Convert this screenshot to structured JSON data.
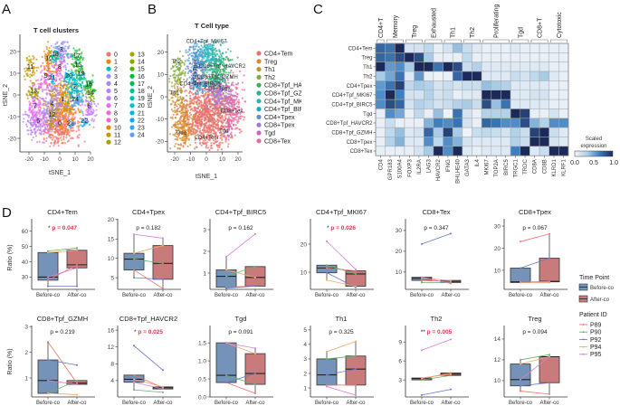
{
  "panel_labels": {
    "a": "A",
    "b": "B",
    "c": "C",
    "d": "D"
  },
  "chart_data": [
    {
      "id": "A",
      "type": "scatter",
      "title": "T cell clusters",
      "xlabel": "tSNE_1",
      "ylabel": "tSNE_2",
      "xticks": [
        -20,
        -10,
        0,
        10,
        20
      ],
      "yticks": [
        -20,
        -10,
        0,
        10,
        20
      ],
      "legend_placement": "right",
      "clusters": [
        {
          "name": "0",
          "color": "#F8766D",
          "label_at": [
            0,
            -14
          ]
        },
        {
          "name": "1",
          "color": "#E58700",
          "label_at": [
            2,
            -3
          ]
        },
        {
          "name": "2",
          "color": "#00BFC4",
          "label_at": [
            10,
            3
          ]
        },
        {
          "name": "3",
          "color": "#9590FF",
          "label_at": [
            1,
            20
          ]
        },
        {
          "name": "4",
          "color": "#A58AFF",
          "label_at": [
            -5,
            -5
          ]
        },
        {
          "name": "5",
          "color": "#B983FF",
          "label_at": [
            -14,
            -13
          ]
        },
        {
          "name": "6",
          "color": "#C77CFF",
          "label_at": [
            19,
            -6
          ]
        },
        {
          "name": "7",
          "color": "#E76BF3",
          "label_at": [
            -16,
            -6
          ]
        },
        {
          "name": "8",
          "color": "#F067D5",
          "label_at": [
            0,
            12
          ]
        },
        {
          "name": "9",
          "color": "#FA62DB",
          "label_at": [
            -9,
            8
          ]
        },
        {
          "name": "10",
          "color": "#E18A00",
          "label_at": [
            -7,
            16
          ]
        },
        {
          "name": "11",
          "color": "#C49A00",
          "label_at": [
            -19,
            12
          ]
        },
        {
          "name": "12",
          "color": "#AA9F00",
          "label_at": [
            -5,
            -10
          ]
        },
        {
          "name": "13",
          "color": "#A3A500",
          "label_at": [
            -17,
            1
          ]
        },
        {
          "name": "14",
          "color": "#86AC00",
          "label_at": [
            20,
            0
          ]
        },
        {
          "name": "15",
          "color": "#53B400",
          "label_at": [
            12,
            13
          ]
        },
        {
          "name": "16",
          "color": "#00BA38",
          "label_at": [
            19,
            4
          ]
        },
        {
          "name": "17",
          "color": "#00BC56",
          "label_at": [
            11,
            17
          ]
        },
        {
          "name": "18",
          "color": "#00C08B",
          "label_at": [
            -3,
            18
          ]
        },
        {
          "name": "19",
          "color": "#00BFAE",
          "label_at": [
            14,
            9
          ]
        },
        {
          "name": "20",
          "color": "#00BBDA",
          "label_at": [
            6,
            8
          ]
        },
        {
          "name": "21",
          "color": "#00B4F0",
          "label_at": [
            -5,
            7
          ]
        },
        {
          "name": "22",
          "color": "#00A9FF",
          "label_at": [
            16,
            -13
          ]
        },
        {
          "name": "23",
          "color": "#35A2FF",
          "label_at": [
            7,
            -14
          ]
        },
        {
          "name": "24",
          "color": "#619CFF",
          "label_at": [
            10,
            -3
          ]
        }
      ]
    },
    {
      "id": "B",
      "type": "scatter",
      "title": "T Cell type",
      "xlabel": "tSNE_1",
      "ylabel": "tSNE_2",
      "xticks": [
        -20,
        -10,
        0,
        10,
        20
      ],
      "yticks": [
        -20,
        -10,
        0,
        10,
        20
      ],
      "legend_placement": "right",
      "clusters": [
        {
          "name": "CD4+Tem",
          "color": "#E8736C",
          "label_at": [
            0,
            -19
          ]
        },
        {
          "name": "Treg",
          "color": "#D9892E",
          "label_at": [
            -16,
            -17
          ]
        },
        {
          "name": "Th1",
          "color": "#B59B2A",
          "label_at": [
            -20,
            1
          ]
        },
        {
          "name": "Th2",
          "color": "#7EAB3A",
          "label_at": [
            -19,
            15
          ]
        },
        {
          "name": "CD8+Tpf_HAVCR2",
          "color": "#3DAE5C",
          "label_at": [
            10,
            13
          ]
        },
        {
          "name": "CD8+Tpf_GZMH",
          "color": "#2DB08F",
          "label_at": [
            7,
            8
          ]
        },
        {
          "name": "CD4+Tpf_MKI67",
          "color": "#25B5BE",
          "label_at": [
            0,
            24
          ]
        },
        {
          "name": "CD4+Tpf_BIRC5",
          "color": "#1FA6D9",
          "label_at": [
            -4,
            5
          ]
        },
        {
          "name": "CD4+Tpex",
          "color": "#5E8ED6",
          "label_at": [
            -6,
            11
          ]
        },
        {
          "name": "CD8+Tpex",
          "color": "#9B79D6",
          "label_at": [
            7,
            3
          ]
        },
        {
          "name": "Tgd",
          "color": "#C667C9",
          "label_at": [
            11,
            -16
          ]
        },
        {
          "name": "CD8+Tex",
          "color": "#E56AA6",
          "label_at": [
            16,
            -7
          ]
        }
      ]
    },
    {
      "id": "C",
      "type": "heatmap",
      "colorbar_title": [
        "Scaled",
        "expression"
      ],
      "colorbar_ticks": [
        "0.0",
        "0.5",
        "1.0"
      ],
      "groups": [
        {
          "label": "CD4+T",
          "from": 0,
          "to": 0
        },
        {
          "label": "Memory",
          "from": 1,
          "to": 2
        },
        {
          "label": "Treg",
          "from": 3,
          "to": 4
        },
        {
          "label": "Exhausted",
          "from": 5,
          "to": 6
        },
        {
          "label": "Th1",
          "from": 7,
          "to": 8
        },
        {
          "label": "Th2",
          "from": 9,
          "to": 10
        },
        {
          "label": "Proliferating",
          "from": 11,
          "to": 13
        },
        {
          "label": "Tgd",
          "from": 14,
          "to": 15
        },
        {
          "label": "CD8+T",
          "from": 16,
          "to": 17
        },
        {
          "label": "Cytotoxic",
          "from": 18,
          "to": 19
        }
      ],
      "columns": [
        "CD4",
        "GPR183",
        "S100A4",
        "FOXP3",
        "IL2RA",
        "LAG3",
        "HAVCR2",
        "IFNG",
        "BHLHE40",
        "GATA3",
        "IL4",
        "MKI67",
        "TOP2A",
        "BIRC5",
        "TRGC1",
        "TRDC",
        "CD8A",
        "CD8B",
        "KLRD1",
        "KLRF1"
      ],
      "rows": [
        "CD4+Tem",
        "Treg",
        "Th1",
        "Th2",
        "CD4+Tpex",
        "CD4+Tpf_MKI67",
        "CD4+Tpf_BIRC5",
        "Tgd",
        "CD8+Tpf_HAVCR2",
        "CD8+Tpf_GZMH",
        "CD8+Tpex",
        "CD8+Tex"
      ],
      "values": [
        [
          0.75,
          0.7,
          1,
          0.15,
          0.15,
          0.25,
          0.05,
          0.15,
          0.4,
          0.2,
          0.1,
          0.05,
          0.05,
          0.05,
          0.1,
          0.05,
          0.05,
          0.05,
          0.05,
          0.05
        ],
        [
          0.75,
          0.7,
          0.85,
          1,
          0.85,
          0.35,
          0.05,
          0.05,
          0.05,
          0.25,
          0.05,
          0.05,
          0.05,
          0.05,
          0.05,
          0.05,
          0.05,
          0.05,
          0.05,
          0.05
        ],
        [
          1,
          0.55,
          0.6,
          0.35,
          1,
          1,
          0.7,
          1,
          0.85,
          0.2,
          0.3,
          0.1,
          0.1,
          0.1,
          0.1,
          0.1,
          0.1,
          0.1,
          0.05,
          0.05
        ],
        [
          0.35,
          0.5,
          0.7,
          0.1,
          0.55,
          0.05,
          0.02,
          0.05,
          0.75,
          1,
          1,
          0.1,
          0.1,
          0.1,
          0.2,
          0.15,
          0.25,
          0.35,
          0.1,
          0.05
        ],
        [
          0.55,
          0.7,
          0.9,
          0.25,
          0.35,
          0.3,
          0.15,
          0.2,
          0.15,
          0.2,
          0.2,
          0.4,
          0.35,
          0.3,
          0.1,
          0.1,
          0.1,
          0.1,
          0.05,
          0.05
        ],
        [
          0.6,
          1,
          0.65,
          0.15,
          0.15,
          0.3,
          0.15,
          0.2,
          0.05,
          0.1,
          0.1,
          1,
          1,
          1,
          0.1,
          0.1,
          0.15,
          0.15,
          0.05,
          0.05
        ],
        [
          0.6,
          0.85,
          0.75,
          0.15,
          0.3,
          0.25,
          0.15,
          0.2,
          0.3,
          0.35,
          0.2,
          0.85,
          0.4,
          0.7,
          0.1,
          0.1,
          0.1,
          0.1,
          0.05,
          0.05
        ],
        [
          0.05,
          0.6,
          0.5,
          0.05,
          0.25,
          0.05,
          0.4,
          0.02,
          0.7,
          0.15,
          0.05,
          0.3,
          0.3,
          0.3,
          1,
          0.9,
          0.05,
          0.05,
          0.15,
          0.05
        ],
        [
          0.05,
          0.2,
          0.05,
          0.05,
          0.05,
          0.45,
          0.65,
          0.6,
          0.7,
          0.15,
          0.05,
          0.75,
          0.7,
          0.6,
          0.6,
          0.85,
          0.45,
          0.3,
          0.6,
          0.6
        ],
        [
          0.05,
          0.25,
          0.4,
          0.1,
          0.15,
          0.75,
          0.35,
          0.9,
          0.35,
          0.02,
          0.2,
          0.25,
          0.2,
          0.15,
          0.3,
          0.2,
          0.9,
          1,
          0.2,
          0.1
        ],
        [
          0.05,
          0.3,
          0.45,
          0.1,
          0.1,
          0.6,
          0.25,
          0.6,
          0.45,
          0.15,
          0.1,
          0.1,
          0.1,
          0.1,
          0.3,
          0.2,
          1,
          1,
          0.15,
          0.1
        ],
        [
          0.05,
          0.05,
          0.05,
          0.05,
          0.15,
          0.35,
          1,
          0.6,
          1,
          0.1,
          0.05,
          0.1,
          0.1,
          0.1,
          0.65,
          1,
          0.1,
          0.2,
          1,
          1
        ]
      ]
    },
    {
      "id": "D",
      "type": "box",
      "ylabel": "Ratio (%)",
      "categories": [
        "Before-co",
        "After-co"
      ],
      "category_colors": [
        "#7593B8",
        "#C97B7B"
      ],
      "legend_title_time": "Time Point",
      "legend_title_patient": "Patient ID",
      "patients": [
        "P89",
        "P90",
        "P92",
        "P94",
        "P95"
      ],
      "patient_colors": [
        "#F0736F",
        "#66B06A",
        "#6677CC",
        "#F4A56A",
        "#D47FD4"
      ],
      "panels": [
        {
          "title": "CD4+Tem",
          "p": "p = 0.047",
          "sig": "*",
          "ylim": [
            22,
            68
          ],
          "yticks": [
            30,
            40,
            50,
            60
          ],
          "before": [
            28,
            47,
            24,
            46,
            30
          ],
          "after": [
            38,
            49,
            24,
            47.5,
            36
          ]
        },
        {
          "title": "CD4+Tpex",
          "p": "p = 0.182",
          "sig": "",
          "ylim": [
            2,
            20.2
          ],
          "yticks": [
            5,
            10,
            15,
            20
          ],
          "before": [
            7,
            9.8,
            5,
            11.3,
            16.2
          ],
          "after": [
            2.2,
            8.7,
            4.6,
            13.3,
            15.2
          ]
        },
        {
          "title": "CD4+Tpf_BIRC5",
          "p": "p = 0.162",
          "sig": "",
          "ylim": [
            0.25,
            3.5
          ],
          "yticks": [
            1,
            2,
            3
          ],
          "before": [
            0.35,
            0.85,
            0.3,
            1.15,
            1.75
          ],
          "after": [
            0.4,
            1.3,
            0.4,
            0.8,
            2.8
          ]
        },
        {
          "title": "CD4+Tpf_MKI67",
          "p": "p = 0.026",
          "sig": "*",
          "ylim": [
            3.9,
            29
          ],
          "yticks": [
            10,
            20
          ],
          "before": [
            11.5,
            12.5,
            9.8,
            7.2,
            21
          ],
          "after": [
            10.5,
            9.4,
            4.6,
            5,
            11
          ]
        },
        {
          "title": "CD8+Tex",
          "p": "p = 0.347",
          "sig": "",
          "ylim": [
            1.7,
            35.6
          ],
          "yticks": [
            10,
            20,
            30
          ],
          "before": [
            6,
            5,
            23.5,
            7,
            7.5
          ],
          "after": [
            5.5,
            5,
            28.5,
            6,
            4.5
          ]
        },
        {
          "title": "CD8+Tpex",
          "p": "p = 0.067",
          "sig": "",
          "ylim": [
            1.4,
            33.3
          ],
          "yticks": [
            10,
            20,
            30
          ],
          "before": [
            23,
            4.5,
            11,
            4.5,
            4.8
          ],
          "after": [
            26.5,
            5,
            15.5,
            4.5,
            4.8
          ]
        },
        {
          "title": "CD8+Tpf_GZMH",
          "p": "p = 0.219",
          "sig": "",
          "ylim": [
            0.26,
            3.04
          ],
          "yticks": [
            1,
            2,
            3
          ],
          "before": [
            2.4,
            0.4,
            1.7,
            0.4,
            0.9
          ],
          "after": [
            0.8,
            0.9,
            1.5,
            0.35,
            0.75
          ]
        },
        {
          "title": "CD8+Tpf_HAVCR2",
          "p": "p = 0.025",
          "sig": "*",
          "ylim": [
            0.1,
            17.1
          ],
          "yticks": [
            4,
            8,
            12,
            16
          ],
          "before": [
            5.3,
            1.8,
            12.3,
            4.3,
            3.6
          ],
          "after": [
            2.3,
            1.2,
            6.5,
            2.5,
            2.0
          ]
        },
        {
          "title": "Tgd",
          "p": "p = 0.091",
          "sig": "",
          "ylim": [
            0,
            1.98
          ],
          "yticks": [
            0.0,
            0.5,
            1.0,
            1.5
          ],
          "before": [
            0.4,
            0.6,
            0.4,
            1.5,
            1.5
          ],
          "after": [
            0.1,
            0.35,
            0.65,
            1.2,
            1.35
          ]
        },
        {
          "title": "Th1",
          "p": "p = 0.325",
          "sig": "",
          "ylim": [
            0.38,
            5.3
          ],
          "yticks": [
            1,
            2,
            3,
            4,
            5
          ],
          "before": [
            1.2,
            3.0,
            1.9,
            3.5,
            1.1
          ],
          "after": [
            1.2,
            3.2,
            2.3,
            4.2,
            0.5
          ]
        },
        {
          "title": "Th2",
          "p": "p = 0.005",
          "sig": "**",
          "ylim": [
            0.3,
            11.6
          ],
          "yticks": [
            3,
            6,
            9
          ],
          "before": [
            3.2,
            3.0,
            0.6,
            3.3,
            7.7
          ],
          "after": [
            4.1,
            3.7,
            1.5,
            3.9,
            9.4
          ]
        },
        {
          "title": "Treg",
          "p": "p = 0.094",
          "sig": "",
          "ylim": [
            8.43,
            15.3
          ],
          "yticks": [
            10,
            12,
            14
          ],
          "before": [
            9,
            12,
            9.5,
            11.6,
            10.1
          ],
          "after": [
            8.7,
            12.5,
            9.8,
            12.3,
            12.3
          ]
        }
      ]
    }
  ]
}
